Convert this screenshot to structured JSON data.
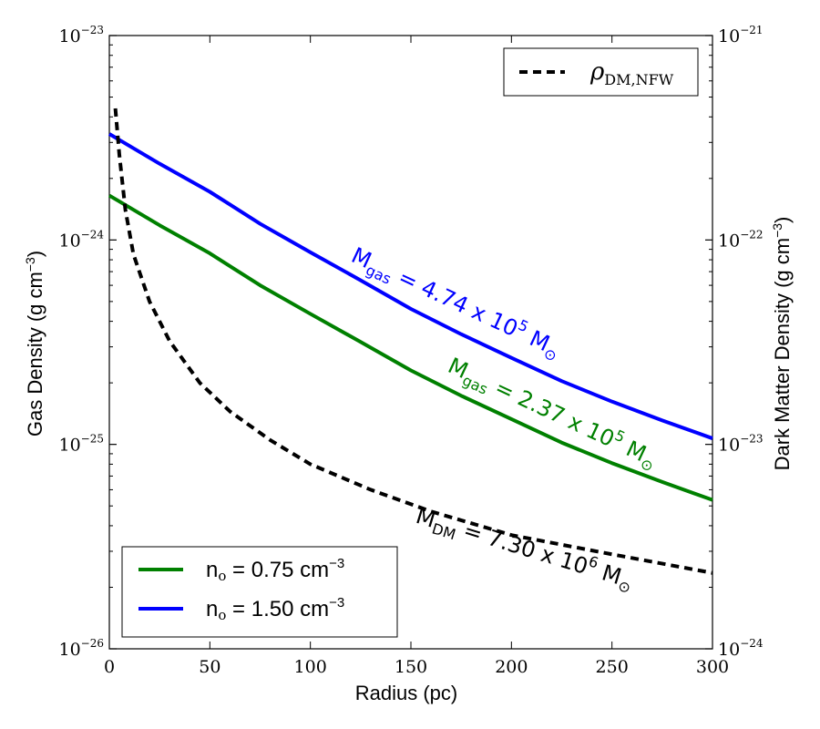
{
  "chart_data": {
    "type": "line",
    "title": "",
    "xlabel": "Radius (pc)",
    "ylabel_left": "Gas Density (g cm",
    "ylabel_left_exp": "−3",
    "ylabel_left_close": ")",
    "ylabel_right": "Dark Matter Density (g cm",
    "ylabel_right_exp": "−3",
    "ylabel_right_close": ")",
    "xlim": [
      0,
      300
    ],
    "ylim_left": [
      1e-26,
      1e-23
    ],
    "ylim_right": [
      1e-24,
      1e-21
    ],
    "yscale": "log",
    "grid": false,
    "x_ticks": [
      0,
      50,
      100,
      150,
      200,
      250,
      300
    ],
    "x_tick_labels": [
      "0",
      "50",
      "100",
      "150",
      "200",
      "250",
      "300"
    ],
    "y_left_ticks": [
      {
        "value": 1e-26,
        "base": "10",
        "exp": "−26"
      },
      {
        "value": 1e-25,
        "base": "10",
        "exp": "−25"
      },
      {
        "value": 1e-24,
        "base": "10",
        "exp": "−24"
      },
      {
        "value": 1e-23,
        "base": "10",
        "exp": "−23"
      }
    ],
    "y_right_ticks": [
      {
        "value": 1e-24,
        "base": "10",
        "exp": "−24"
      },
      {
        "value": 1e-23,
        "base": "10",
        "exp": "−23"
      },
      {
        "value": 1e-22,
        "base": "10",
        "exp": "−22"
      },
      {
        "value": 1e-21,
        "base": "10",
        "exp": "−21"
      }
    ],
    "series": [
      {
        "name": "n_o = 0.75 cm^-3",
        "axis": "left",
        "color": "#008000",
        "style": "solid",
        "x": [
          0,
          25,
          50,
          75,
          100,
          125,
          150,
          175,
          200,
          225,
          250,
          275,
          300
        ],
        "y": [
          1.65e-24,
          1.18e-24,
          8.6e-25,
          6e-25,
          4.35e-25,
          3.17e-25,
          2.3e-25,
          1.73e-25,
          1.33e-25,
          1.02e-25,
          8.1e-26,
          6.55e-26,
          5.35e-26
        ]
      },
      {
        "name": "n_o = 1.50 cm^-3",
        "axis": "left",
        "color": "#0000ff",
        "style": "solid",
        "x": [
          0,
          25,
          50,
          75,
          100,
          125,
          150,
          175,
          200,
          225,
          250,
          275,
          300
        ],
        "y": [
          3.3e-24,
          2.36e-24,
          1.72e-24,
          1.2e-24,
          8.7e-25,
          6.35e-25,
          4.6e-25,
          3.46e-25,
          2.65e-25,
          2.04e-25,
          1.62e-25,
          1.31e-25,
          1.07e-25
        ]
      },
      {
        "name": "ρ_DM,NFW",
        "axis": "right",
        "color": "#000000",
        "style": "dashed",
        "x": [
          3,
          5,
          8,
          12,
          20,
          30,
          45,
          60,
          80,
          100,
          130,
          160,
          200,
          250,
          300
        ],
        "y": [
          4.4e-22,
          2.6e-22,
          1.4e-22,
          8.5e-23,
          5e-23,
          3.2e-23,
          2e-23,
          1.45e-23,
          1.05e-23,
          8e-24,
          6e-24,
          4.7e-24,
          3.6e-24,
          2.9e-24,
          2.35e-24
        ]
      }
    ],
    "legends": {
      "lower_left": [
        {
          "label": "n",
          "sub": "o",
          "text": " = 0.75 cm",
          "exp": "−3",
          "color": "#008000"
        },
        {
          "label": "n",
          "sub": "o",
          "text": " = 1.50 cm",
          "exp": "−3",
          "color": "#0000ff"
        }
      ],
      "upper_right": [
        {
          "label": "ρ",
          "sub": "DM,NFW",
          "color": "#000000"
        }
      ]
    },
    "annotations": [
      {
        "main": "M",
        "sub": "gas",
        "text": " = 4.74 x 10",
        "sup": "5",
        "tail": " M",
        "sym": "⊙",
        "color": "#0000ff",
        "x": 120,
        "y_left": 8.5e-25,
        "angle": 25
      },
      {
        "main": "M",
        "sub": "gas",
        "text": " = 2.37 x 10",
        "sup": "5",
        "tail": " M",
        "sym": "⊙",
        "color": "#008000",
        "x": 168,
        "y_left": 2e-25,
        "angle": 25
      },
      {
        "main": "M",
        "sub": "DM",
        "text": " = 7.30 x 10",
        "sup": "6",
        "tail": " M",
        "sym": "⊙",
        "color": "#000000",
        "x": 150,
        "y_left": 3.5e-26,
        "angle": 17
      }
    ]
  }
}
